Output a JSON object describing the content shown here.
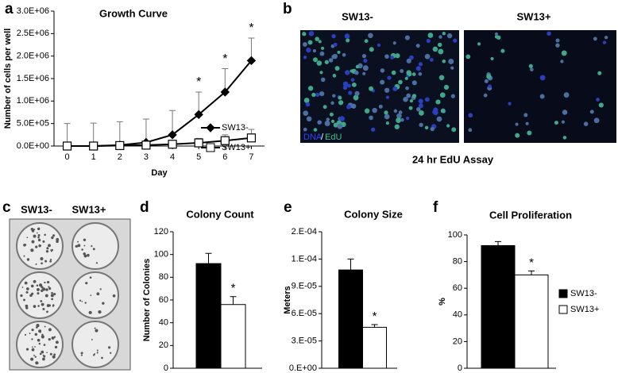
{
  "chart_data": [
    {
      "type": "line",
      "panel_label": "a",
      "title": "Growth Curve",
      "xlabel": "Day",
      "ylabel": "Number of cells per well",
      "x": [
        0,
        1,
        2,
        3,
        4,
        5,
        6,
        7
      ],
      "xlim": [
        -0.5,
        7.5
      ],
      "xticks": [
        0,
        1,
        2,
        3,
        4,
        5,
        6,
        7
      ],
      "ylim": [
        0,
        3000000
      ],
      "yticks": [
        {
          "value": 0,
          "label": "0.0E+00"
        },
        {
          "value": 500000,
          "label": "5.0E+05"
        },
        {
          "value": 1000000,
          "label": "1.0E+06"
        },
        {
          "value": 1500000,
          "label": "1.5E+06"
        },
        {
          "value": 2000000,
          "label": "2.0E+06"
        },
        {
          "value": 2500000,
          "label": "2.5E+06"
        },
        {
          "value": 3000000,
          "label": "3.0E+06"
        }
      ],
      "legend": "lower right",
      "series": [
        {
          "name": "SW13-",
          "color": "#000000",
          "marker": "diamond",
          "marker_fill": "#000000",
          "values": [
            0,
            0,
            20000,
            80000,
            250000,
            700000,
            1200000,
            1900000
          ],
          "errors": [
            500000,
            510000,
            520000,
            520000,
            540000,
            500000,
            520000,
            500000
          ],
          "significance": [
            null,
            null,
            null,
            null,
            null,
            "*",
            "*",
            "*"
          ]
        },
        {
          "name": "SW13+",
          "color": "#000000",
          "marker": "square",
          "marker_fill": "#ffffff",
          "values": [
            0,
            0,
            10000,
            20000,
            40000,
            70000,
            120000,
            180000
          ],
          "errors": [
            0,
            0,
            20000,
            30000,
            50000,
            100000,
            130000,
            190000
          ]
        }
      ]
    },
    {
      "type": "bar",
      "panel_label": "d",
      "title": "Colony Count",
      "ylabel": "Number of Colonies",
      "ylim": [
        0,
        120
      ],
      "yticks": [
        0,
        20,
        40,
        60,
        80,
        100,
        120
      ],
      "series": [
        {
          "color": "#000000",
          "values": [
            92
          ],
          "errors": [
            9
          ]
        },
        {
          "color": "#ffffff",
          "values": [
            56
          ],
          "errors": [
            7
          ],
          "significance": [
            "*"
          ]
        }
      ]
    },
    {
      "type": "bar",
      "panel_label": "e",
      "title": "Colony Size",
      "ylabel": "Meters",
      "ylim": [
        0,
        0.00015
      ],
      "yticks": [
        {
          "value": 0,
          "label": "0.E+00"
        },
        {
          "value": 3e-05,
          "label": "3.E-05"
        },
        {
          "value": 6e-05,
          "label": "6.E-05"
        },
        {
          "value": 9e-05,
          "label": "9.E-05"
        },
        {
          "value": 0.00012,
          "label": "1.E-04"
        },
        {
          "value": 0.00015,
          "label": "2.E-04"
        }
      ],
      "series": [
        {
          "color": "#000000",
          "values": [
            0.000108
          ],
          "errors": [
            1.2e-05
          ]
        },
        {
          "color": "#ffffff",
          "values": [
            4.5e-05
          ],
          "errors": [
            3e-06
          ],
          "significance": [
            "*"
          ]
        }
      ]
    },
    {
      "type": "bar",
      "panel_label": "f",
      "title": "Cell Proliferation",
      "ylabel": "%",
      "ylim": [
        0,
        100
      ],
      "yticks": [
        0,
        20,
        40,
        60,
        80,
        100
      ],
      "legend": "right",
      "series": [
        {
          "name": "SW13-",
          "color": "#000000",
          "values": [
            92
          ],
          "errors": [
            3
          ]
        },
        {
          "name": "SW13+",
          "color": "#ffffff",
          "values": [
            70
          ],
          "errors": [
            3
          ],
          "significance": [
            "*"
          ]
        }
      ]
    }
  ],
  "images": {
    "edu": {
      "panel_label": "b",
      "left_title": "SW13-",
      "right_title": "SW13+",
      "stain_dna": "DNA",
      "stain_sep": "/",
      "stain_edu": "EdU",
      "caption": "24 hr EdU Assay"
    },
    "plates": {
      "panel_label": "c",
      "left_title": "SW13-",
      "right_title": "SW13+"
    }
  }
}
